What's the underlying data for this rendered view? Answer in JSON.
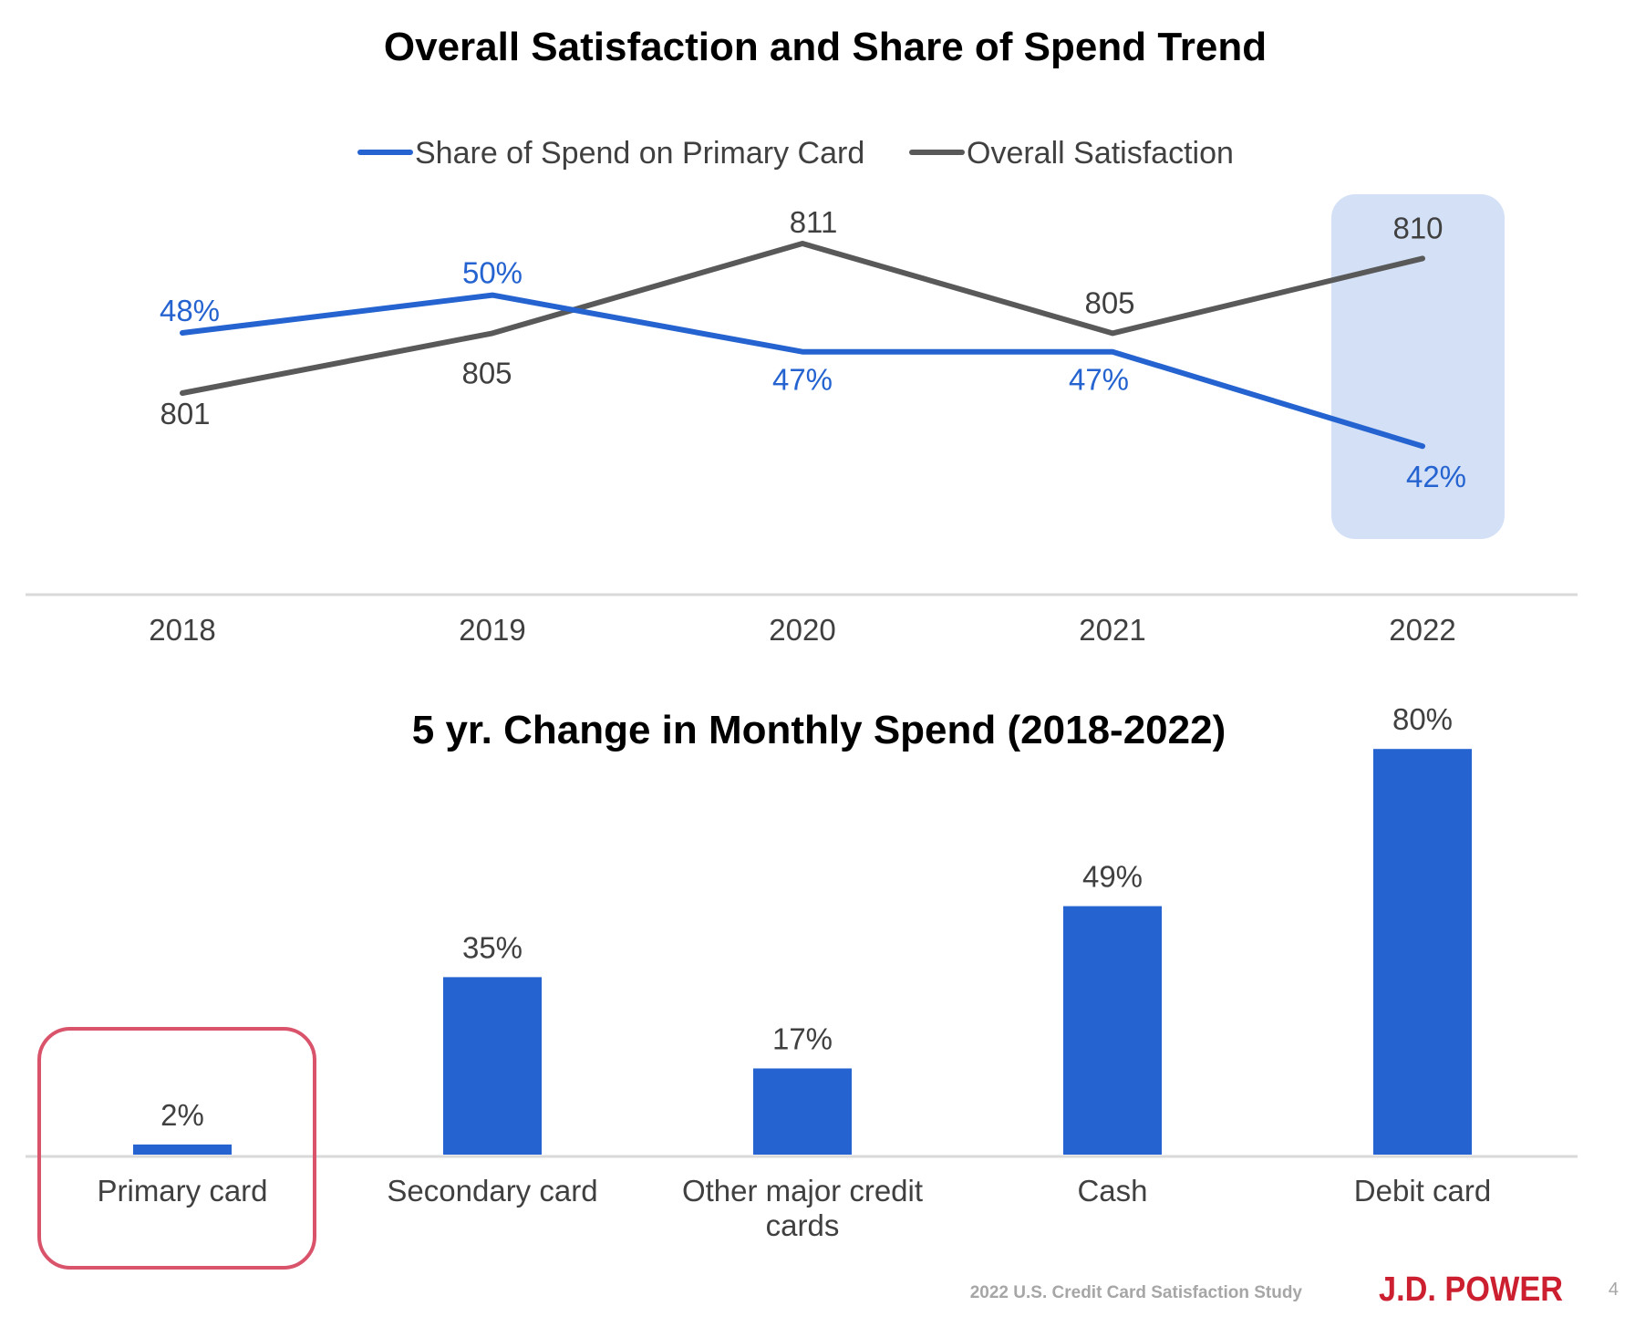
{
  "chart_data": [
    {
      "type": "line",
      "title": "Overall Satisfaction and Share of Spend Trend",
      "x": [
        "2018",
        "2019",
        "2020",
        "2021",
        "2022"
      ],
      "series": [
        {
          "name": "Share of Spend on Primary Card",
          "values": [
            48,
            50,
            47,
            47,
            42
          ],
          "labels": [
            "48%",
            "50%",
            "47%",
            "47%",
            "42%"
          ],
          "color": "#2563D0"
        },
        {
          "name": "Overall Satisfaction",
          "values": [
            801,
            805,
            811,
            805,
            810
          ],
          "labels": [
            "801",
            "805",
            "811",
            "805",
            "810"
          ],
          "color": "#595959"
        }
      ],
      "legend_position": "top",
      "highlight_category": "2022",
      "highlight_color": "#D3E0F6",
      "grid": false
    },
    {
      "type": "bar",
      "title": "5 yr. Change in Monthly Spend (2018-2022)",
      "categories": [
        "Primary card",
        "Secondary card",
        "Other major credit cards",
        "Cash",
        "Debit card"
      ],
      "values": [
        2,
        35,
        17,
        49,
        80
      ],
      "labels": [
        "2%",
        "35%",
        "17%",
        "49%",
        "80%"
      ],
      "unit": "%",
      "bar_color": "#2563D0",
      "highlight_category": "Primary card",
      "highlight_color": "#D9536B",
      "grid": false
    }
  ],
  "footer": {
    "study": "2022 U.S. Credit Card Satisfaction Study",
    "brand": "J.D. POWER",
    "page": "4"
  }
}
